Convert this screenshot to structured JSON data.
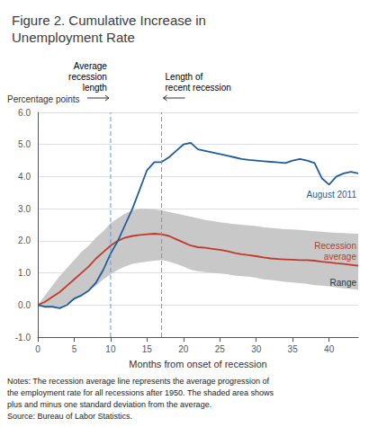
{
  "chart_data": {
    "type": "line",
    "title": "Figure 2. Cumulative Increase in\nUnemployment Rate",
    "ylabel": "Percentage points",
    "xlabel": "Months from onset of recession",
    "notes": "Notes: The recession average line represents the average progression of\nthe employment rate for all recessions after 1950. The shaded area shows\nplus and minus one standard deviation from the average.\nSource: Bureau of Labor Statistics.",
    "xlim": [
      0,
      44
    ],
    "ylim": [
      -1.0,
      6.0
    ],
    "xticks": [
      0,
      5,
      10,
      15,
      20,
      25,
      30,
      35,
      40
    ],
    "yticks": [
      {
        "value": -1.0,
        "label": "-1.0"
      },
      {
        "value": 0.0,
        "label": "0.0"
      },
      {
        "value": 1.0,
        "label": "1.0"
      },
      {
        "value": 2.0,
        "label": "2.0"
      },
      {
        "value": 3.0,
        "label": "3.0"
      },
      {
        "value": 4.0,
        "label": "4.0"
      },
      {
        "value": 5.0,
        "label": "5.0"
      },
      {
        "value": 6.0,
        "label": "6.0"
      }
    ],
    "grid": true,
    "x": [
      0,
      1,
      2,
      3,
      4,
      5,
      6,
      7,
      8,
      9,
      10,
      11,
      12,
      13,
      14,
      15,
      16,
      17,
      18,
      19,
      20,
      21,
      22,
      23,
      24,
      25,
      26,
      27,
      28,
      29,
      30,
      31,
      32,
      33,
      34,
      35,
      36,
      37,
      38,
      39,
      40,
      41,
      42,
      43,
      44
    ],
    "series": [
      {
        "name": "Range",
        "type": "band",
        "color": "#c8c8c8",
        "upper": [
          0.0,
          0.3,
          0.6,
          0.9,
          1.15,
          1.4,
          1.65,
          1.85,
          2.1,
          2.3,
          2.55,
          2.7,
          2.85,
          2.95,
          3.0,
          3.0,
          2.98,
          2.95,
          2.9,
          2.85,
          2.8,
          2.75,
          2.7,
          2.65,
          2.62,
          2.58,
          2.55,
          2.52,
          2.5,
          2.48,
          2.46,
          2.42,
          2.4,
          2.38,
          2.36,
          2.35,
          2.34,
          2.32,
          2.3,
          2.28,
          2.26,
          2.25,
          2.24,
          2.23,
          2.22
        ],
        "lower": [
          0.0,
          -0.1,
          -0.1,
          -0.1,
          0.05,
          0.15,
          0.3,
          0.45,
          0.6,
          0.8,
          0.95,
          1.1,
          1.2,
          1.28,
          1.32,
          1.35,
          1.38,
          1.4,
          1.35,
          1.28,
          1.2,
          1.1,
          1.05,
          1.02,
          1.0,
          0.98,
          0.96,
          0.92,
          0.9,
          0.88,
          0.85,
          0.8,
          0.78,
          0.75,
          0.72,
          0.7,
          0.68,
          0.66,
          0.62,
          0.6,
          0.58,
          0.55,
          0.52,
          0.5,
          0.48
        ]
      },
      {
        "name": "Recession\naverage",
        "type": "line",
        "color": "#c0392b",
        "values": [
          0.0,
          0.1,
          0.25,
          0.4,
          0.6,
          0.8,
          1.0,
          1.2,
          1.45,
          1.65,
          1.85,
          2.0,
          2.1,
          2.15,
          2.18,
          2.2,
          2.22,
          2.2,
          2.15,
          2.05,
          1.95,
          1.85,
          1.8,
          1.78,
          1.75,
          1.72,
          1.68,
          1.62,
          1.58,
          1.55,
          1.52,
          1.48,
          1.45,
          1.43,
          1.42,
          1.41,
          1.4,
          1.4,
          1.38,
          1.35,
          1.33,
          1.3,
          1.28,
          1.25,
          1.22
        ]
      },
      {
        "name": "August 2011",
        "type": "line",
        "color": "#1f5c99",
        "values": [
          0.0,
          -0.05,
          -0.05,
          -0.1,
          0.0,
          0.2,
          0.3,
          0.45,
          0.7,
          1.1,
          1.6,
          2.0,
          2.5,
          3.0,
          3.6,
          4.2,
          4.45,
          4.45,
          4.6,
          4.8,
          5.0,
          5.05,
          4.85,
          4.8,
          4.75,
          4.7,
          4.65,
          4.6,
          4.55,
          4.52,
          4.5,
          4.48,
          4.46,
          4.44,
          4.42,
          4.5,
          4.55,
          4.5,
          4.42,
          3.95,
          3.75,
          4.0,
          4.1,
          4.15,
          4.1
        ]
      }
    ],
    "vlines": [
      {
        "x": 10,
        "label": "Average\nrecession\nlength",
        "color": "#6699cc",
        "line_style": "dashed"
      },
      {
        "x": 17,
        "label": "Length of\nrecent recession",
        "color": "#6699cc",
        "line_style": "dashed"
      }
    ]
  }
}
